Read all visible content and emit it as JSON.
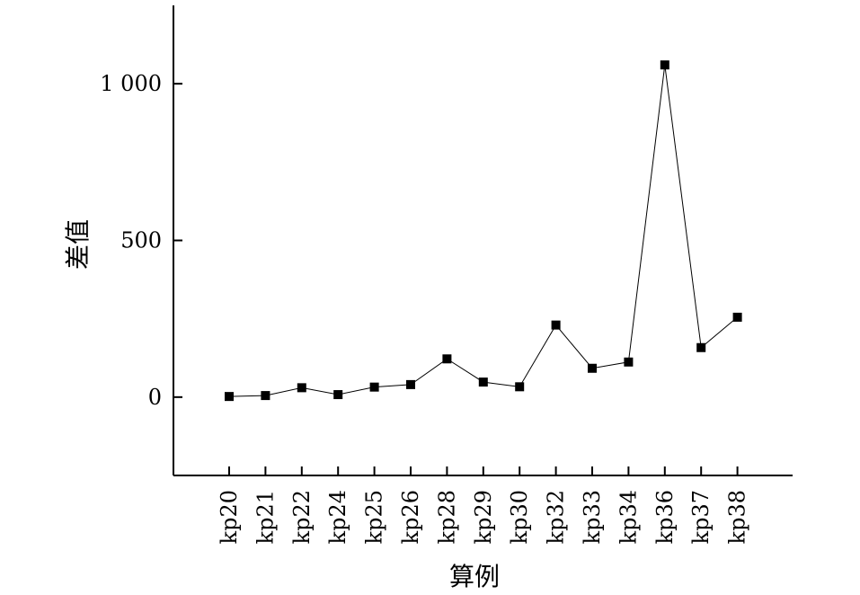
{
  "chart_data": {
    "type": "line",
    "xlabel": "算例",
    "ylabel": "差值",
    "categories": [
      "kp20",
      "kp21",
      "kp22",
      "kp24",
      "kp25",
      "kp26",
      "kp28",
      "kp29",
      "kp30",
      "kp32",
      "kp33",
      "kp34",
      "kp36",
      "kp37",
      "kp38"
    ],
    "series": [
      {
        "values": [
          2,
          5,
          30,
          8,
          32,
          40,
          122,
          48,
          33,
          230,
          92,
          112,
          1060,
          158,
          255
        ]
      }
    ],
    "ylim": [
      -250,
      1250
    ],
    "yticks": [
      0,
      500,
      1000
    ],
    "ytick_labels": [
      "0",
      "500",
      "1 000"
    ],
    "marker": "square",
    "line_color": "#000000",
    "grid": false,
    "legend": "none"
  }
}
